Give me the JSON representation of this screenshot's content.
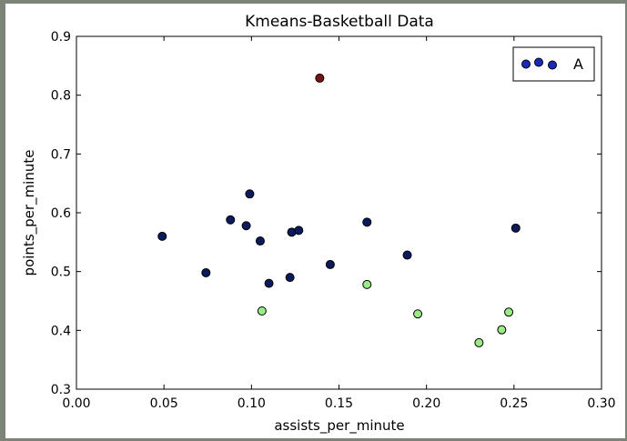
{
  "chart_data": {
    "type": "scatter",
    "title": "Kmeans-Basketball Data",
    "xlabel": "assists_per_minute",
    "ylabel": "points_per_minute",
    "xlim": [
      0.0,
      0.3
    ],
    "ylim": [
      0.3,
      0.9
    ],
    "xticks": [
      "0.00",
      "0.05",
      "0.10",
      "0.15",
      "0.20",
      "0.25",
      "0.30"
    ],
    "yticks": [
      "0.3",
      "0.4",
      "0.5",
      "0.6",
      "0.7",
      "0.8",
      "0.9"
    ],
    "grid": false,
    "legend": {
      "placement": "top-right",
      "label": "A"
    },
    "colors": {
      "cluster_dark_blue": "#0a1a5c",
      "cluster_light_green": "#9aea86",
      "cluster_dark_red": "#7a1212",
      "legend_marker": "#1a2ab8"
    },
    "series": [
      {
        "color_key": "cluster_dark_blue",
        "x": [
          0.049,
          0.074,
          0.088,
          0.097,
          0.099,
          0.105,
          0.11,
          0.122,
          0.123,
          0.127,
          0.145,
          0.166,
          0.189,
          0.251
        ],
        "y": [
          0.56,
          0.498,
          0.588,
          0.578,
          0.632,
          0.552,
          0.48,
          0.49,
          0.567,
          0.57,
          0.512,
          0.584,
          0.528,
          0.574
        ]
      },
      {
        "color_key": "cluster_light_green",
        "x": [
          0.106,
          0.166,
          0.195,
          0.23,
          0.243,
          0.247
        ],
        "y": [
          0.433,
          0.478,
          0.428,
          0.379,
          0.401,
          0.431
        ]
      },
      {
        "color_key": "cluster_dark_red",
        "x": [
          0.139
        ],
        "y": [
          0.829
        ]
      }
    ]
  }
}
